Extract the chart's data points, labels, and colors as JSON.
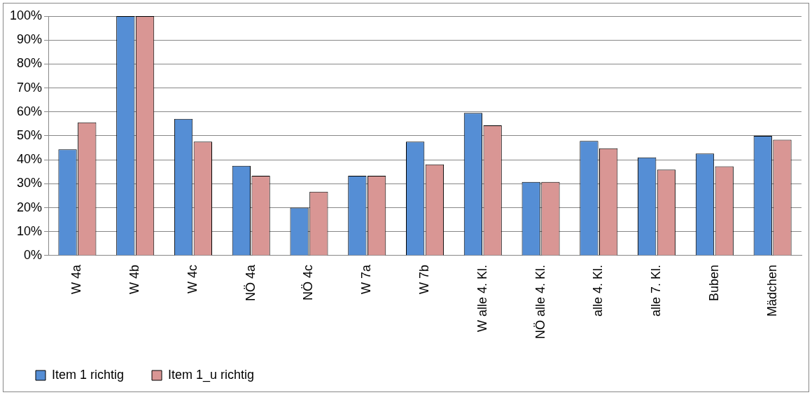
{
  "chart_data": {
    "type": "bar",
    "categories": [
      "W 4a",
      "W 4b",
      "W 4c",
      "NÖ 4a",
      "NÖ 4c",
      "W 7a",
      "W 7b",
      "W alle 4. Kl.",
      "NÖ alle 4. Kl.",
      "alle 4. Kl.",
      "alle 7. Kl.",
      "Buben",
      "Mädchen"
    ],
    "series": [
      {
        "name": "Item 1 richtig",
        "color": "#558ed5",
        "values": [
          44.4,
          100,
          57.1,
          37.5,
          20,
          33.3,
          47.6,
          59.6,
          30.8,
          47.9,
          41,
          42.6,
          50
        ]
      },
      {
        "name": "Item 1_u richtig",
        "color": "#d99694",
        "values": [
          55.6,
          100,
          47.6,
          33.3,
          26.7,
          33.3,
          38.1,
          54.4,
          30.8,
          44.8,
          35.9,
          37.3,
          48.4
        ]
      }
    ],
    "ylim": [
      0,
      100
    ],
    "yticks": [
      {
        "value": 0,
        "label": "0%"
      },
      {
        "value": 10,
        "label": "10%"
      },
      {
        "value": 20,
        "label": "20%"
      },
      {
        "value": 30,
        "label": "30%"
      },
      {
        "value": 40,
        "label": "40%"
      },
      {
        "value": 50,
        "label": "50%"
      },
      {
        "value": 60,
        "label": "60%"
      },
      {
        "value": 70,
        "label": "70%"
      },
      {
        "value": 80,
        "label": "80%"
      },
      {
        "value": 90,
        "label": "90%"
      },
      {
        "value": 100,
        "label": "100%"
      }
    ],
    "grid": "y",
    "legend": "bottom left"
  }
}
